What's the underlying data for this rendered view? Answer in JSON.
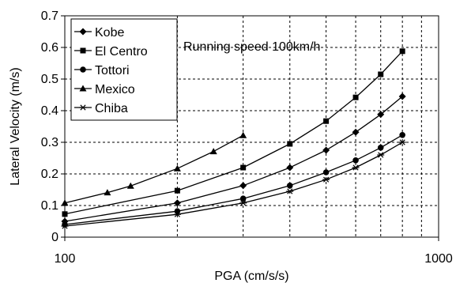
{
  "chart_data": {
    "type": "line",
    "title": "",
    "xlabel": "PGA (cm/s/s)",
    "ylabel": "Lateral Velocity (m/s)",
    "xscale": "log",
    "xlim": [
      100,
      1000
    ],
    "ylim": [
      0,
      0.7
    ],
    "xticks": [
      "100",
      "1000"
    ],
    "yticks": [
      "0",
      "0.1",
      "0.2",
      "0.3",
      "0.4",
      "0.5",
      "0.6",
      "0.7"
    ],
    "grid": true,
    "legend_position": "top-left",
    "annotation": "Running speed 100km/h",
    "series": [
      {
        "name": "Kobe",
        "marker": "diamond",
        "x": [
          100,
          200,
          300,
          400,
          500,
          600,
          700,
          800
        ],
        "y": [
          0.05,
          0.108,
          0.163,
          0.22,
          0.275,
          0.332,
          0.388,
          0.445
        ]
      },
      {
        "name": "El Centro",
        "marker": "square",
        "x": [
          100,
          200,
          300,
          400,
          500,
          600,
          700,
          800
        ],
        "y": [
          0.073,
          0.147,
          0.22,
          0.295,
          0.367,
          0.442,
          0.515,
          0.588
        ]
      },
      {
        "name": "Tottori",
        "marker": "circle",
        "x": [
          100,
          200,
          300,
          400,
          500,
          600,
          700,
          800
        ],
        "y": [
          0.04,
          0.082,
          0.122,
          0.163,
          0.205,
          0.243,
          0.283,
          0.323
        ]
      },
      {
        "name": "Mexico",
        "marker": "triangle",
        "x": [
          100,
          130,
          150,
          200,
          250,
          300
        ],
        "y": [
          0.108,
          0.141,
          0.162,
          0.217,
          0.271,
          0.322
        ]
      },
      {
        "name": "Chiba",
        "marker": "asterisk",
        "x": [
          100,
          200,
          300,
          400,
          500,
          600,
          700,
          800
        ],
        "y": [
          0.035,
          0.072,
          0.108,
          0.145,
          0.182,
          0.22,
          0.26,
          0.3
        ]
      }
    ]
  }
}
